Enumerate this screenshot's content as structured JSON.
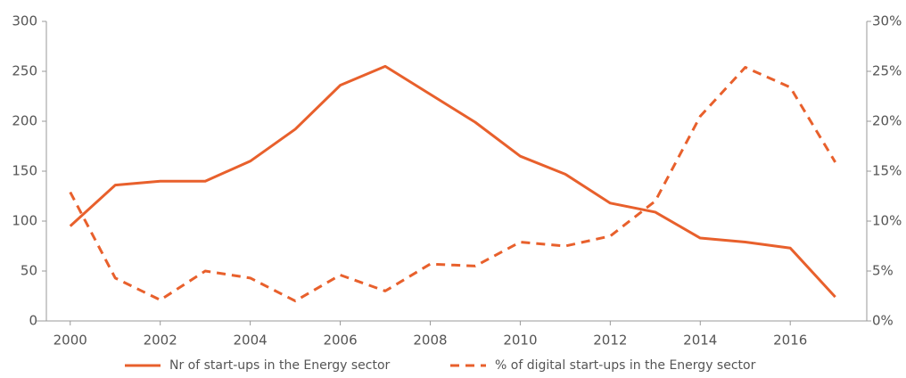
{
  "chart_data": {
    "type": "line",
    "x": [
      2000,
      2001,
      2002,
      2003,
      2004,
      2005,
      2006,
      2007,
      2008,
      2009,
      2010,
      2011,
      2012,
      2013,
      2014,
      2015,
      2016,
      2017
    ],
    "series": [
      {
        "name": "Nr of start-ups in the Energy sector",
        "color": "#e8602c",
        "dash": false,
        "values": [
          95,
          136,
          140,
          140,
          160,
          192,
          236,
          255,
          227,
          199,
          165,
          147,
          118,
          109,
          83,
          79,
          73,
          24
        ]
      },
      {
        "name": "% of digital start-ups in the Energy sector",
        "color": "#e8602c",
        "dash": true,
        "axis": "y2",
        "values": [
          12.9,
          4.3,
          2.1,
          5.0,
          4.3,
          2.0,
          4.6,
          3.0,
          5.7,
          5.5,
          7.9,
          7.5,
          8.5,
          12.0,
          20.5,
          25.4,
          23.4,
          15.9
        ]
      }
    ],
    "xlim": [
      1999.47,
      2017.7
    ],
    "xticks": [
      2000,
      2002,
      2004,
      2006,
      2008,
      2010,
      2012,
      2014,
      2016
    ],
    "ylim": [
      0,
      300
    ],
    "yticks": [
      0,
      50,
      100,
      150,
      200,
      250,
      300
    ],
    "y2lim": [
      0,
      30
    ],
    "y2ticks": [
      {
        "value": 0,
        "label": "0%"
      },
      {
        "value": 5,
        "label": "5%"
      },
      {
        "value": 10,
        "label": "10%"
      },
      {
        "value": 15,
        "label": "15%"
      },
      {
        "value": 20,
        "label": "20%"
      },
      {
        "value": 25,
        "label": "25%"
      },
      {
        "value": 30,
        "label": "30%"
      }
    ],
    "legend": "bottom"
  }
}
